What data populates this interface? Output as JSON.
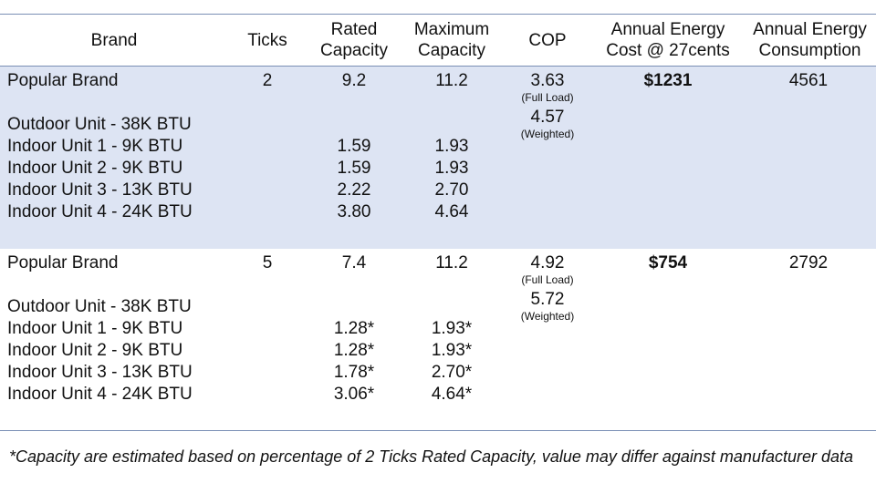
{
  "headers": {
    "brand": [
      "Brand"
    ],
    "ticks": [
      "Ticks"
    ],
    "rated": [
      "Rated",
      "Capacity"
    ],
    "maximum": [
      "Maximum",
      "Capacity"
    ],
    "cop": [
      "COP"
    ],
    "cost": [
      "Annual Energy",
      "Cost @ 27cents"
    ],
    "consumption": [
      "Annual Energy",
      "Consumption"
    ]
  },
  "groups": [
    {
      "brand": "Popular Brand",
      "ticks": "2",
      "rated": "9.2",
      "maximum": "11.2",
      "cop_full": "3.63",
      "cop_full_label": "(Full Load)",
      "cop_weighted": "4.57",
      "cop_weighted_label": "(Weighted)",
      "cost": "$1231",
      "consumption": "4561",
      "outdoor": "Outdoor Unit - 38K BTU",
      "indoor": [
        {
          "name": "Indoor Unit 1 - 9K BTU",
          "rated": "1.59",
          "max": "1.93"
        },
        {
          "name": "Indoor Unit 2 - 9K BTU",
          "rated": "1.59",
          "max": "1.93"
        },
        {
          "name": "Indoor Unit 3 - 13K BTU",
          "rated": "2.22",
          "max": "2.70"
        },
        {
          "name": "Indoor Unit 4 - 24K BTU",
          "rated": "3.80",
          "max": "4.64"
        }
      ]
    },
    {
      "brand": "Popular Brand",
      "ticks": "5",
      "rated": "7.4",
      "maximum": "11.2",
      "cop_full": "4.92",
      "cop_full_label": "(Full Load)",
      "cop_weighted": "5.72",
      "cop_weighted_label": "(Weighted)",
      "cost": "$754",
      "consumption": "2792",
      "outdoor": "Outdoor Unit - 38K BTU",
      "indoor": [
        {
          "name": "Indoor Unit 1 - 9K BTU",
          "rated": "1.28*",
          "max": "1.93*"
        },
        {
          "name": "Indoor Unit 2 - 9K BTU",
          "rated": "1.28*",
          "max": "1.93*"
        },
        {
          "name": "Indoor Unit 3 - 13K BTU",
          "rated": "1.78*",
          "max": "2.70*"
        },
        {
          "name": "Indoor Unit 4 - 24K BTU",
          "rated": "3.06*",
          "max": "4.64*"
        }
      ]
    }
  ],
  "footnote": "*Capacity are estimated based on percentage of 2 Ticks Rated Capacity, value may differ against manufacturer data"
}
